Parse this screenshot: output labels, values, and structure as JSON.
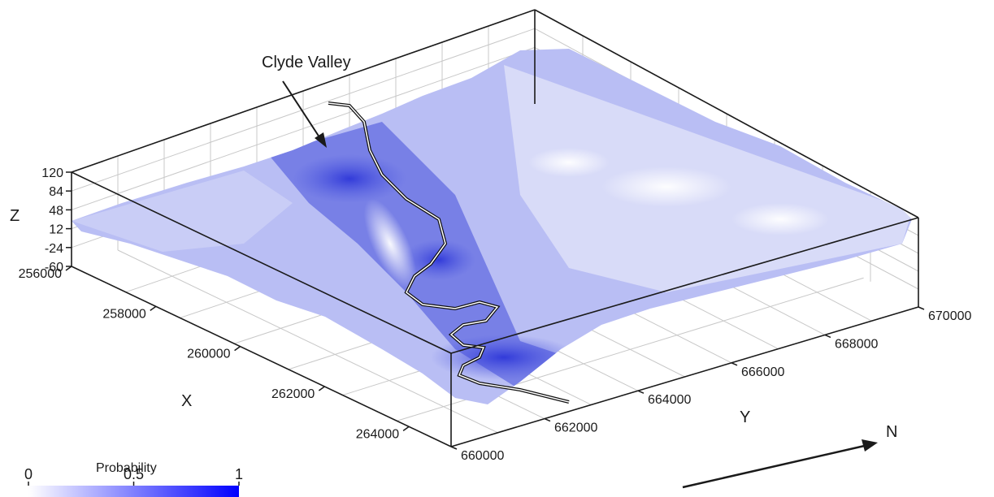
{
  "chart_data": {
    "type": "3d-surface",
    "annotation": "Clyde Valley",
    "z_axis": {
      "label": "Z",
      "ticks": [
        "120",
        "84",
        "48",
        "12",
        "-24",
        "-60"
      ],
      "range": [
        -60,
        120
      ]
    },
    "x_axis": {
      "label": "X",
      "ticks": [
        "256000",
        "258000",
        "260000",
        "262000",
        "264000"
      ],
      "range": [
        256000,
        264000
      ]
    },
    "y_axis": {
      "label": "Y",
      "ticks": [
        "660000",
        "662000",
        "664000",
        "666000",
        "668000",
        "670000"
      ],
      "range": [
        660000,
        670000
      ]
    },
    "north_label": "N",
    "colorbar": {
      "title": "Probability",
      "ticks": [
        "0",
        "0.5",
        "1"
      ],
      "range": [
        0,
        1
      ],
      "color_low": "#ffffff",
      "color_high": "#0000ff"
    },
    "grid": true
  }
}
